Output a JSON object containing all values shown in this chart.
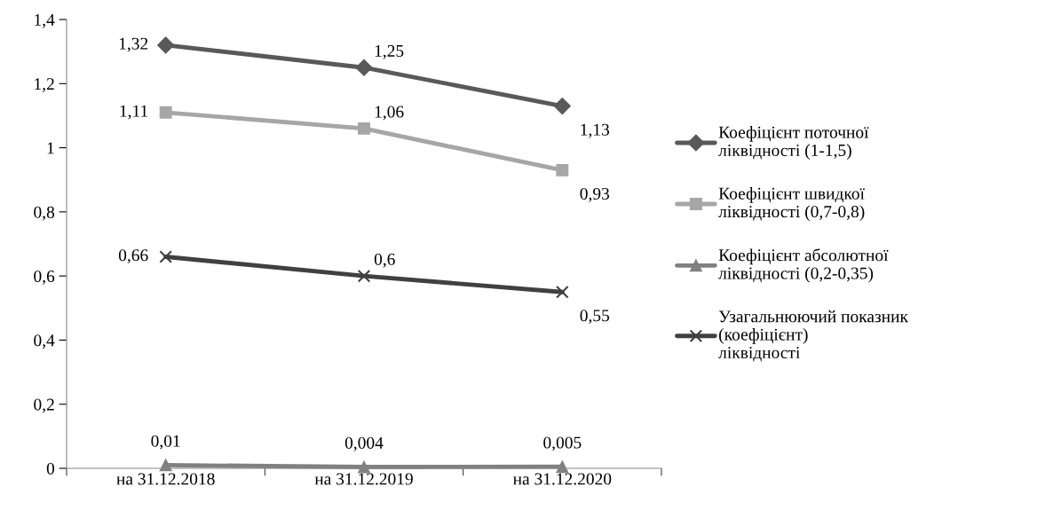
{
  "chart_data": {
    "type": "line",
    "categories": [
      "на 31.12.2018",
      "на 31.12.2019",
      "на 31.12.2020"
    ],
    "series": [
      {
        "name": "Коефіцієнт поточної ліквідності (1-1,5)",
        "color": "#595959",
        "marker": "diamond",
        "values": [
          1.32,
          1.25,
          1.13
        ],
        "value_labels": [
          "1,32",
          "1,25",
          "1,13"
        ]
      },
      {
        "name": "Коефіцієнт швидкої ліквідності (0,7-0,8)",
        "color": "#a6a6a6",
        "marker": "square",
        "values": [
          1.11,
          1.06,
          0.93
        ],
        "value_labels": [
          "1,11",
          "1,06",
          "0,93"
        ]
      },
      {
        "name": "Коефіцієнт абсолютної ліквідності (0,2-0,35)",
        "color": "#808080",
        "marker": "triangle",
        "values": [
          0.01,
          0.004,
          0.005
        ],
        "value_labels": [
          "0,01",
          "0,004",
          "0,005"
        ]
      },
      {
        "name": "Узагальнюючий показник (коефіцієнт) ліквідності",
        "color": "#404040",
        "marker": "cross",
        "values": [
          0.66,
          0.6,
          0.55
        ],
        "value_labels": [
          "0,66",
          "0,6",
          "0,55"
        ]
      }
    ],
    "ylim": [
      0,
      1.4
    ],
    "yticks": [
      0,
      {
        "value": 0.2,
        "label": "0,2"
      },
      {
        "value": 0.4,
        "label": "0,4"
      },
      {
        "value": 0.6,
        "label": "0,6"
      },
      {
        "value": 0.8,
        "label": "0,8"
      },
      1,
      {
        "value": 1.2,
        "label": "1,2"
      },
      {
        "value": 1.4,
        "label": "1,4"
      }
    ],
    "grid": false,
    "legend": "right",
    "line_style": "solid"
  }
}
